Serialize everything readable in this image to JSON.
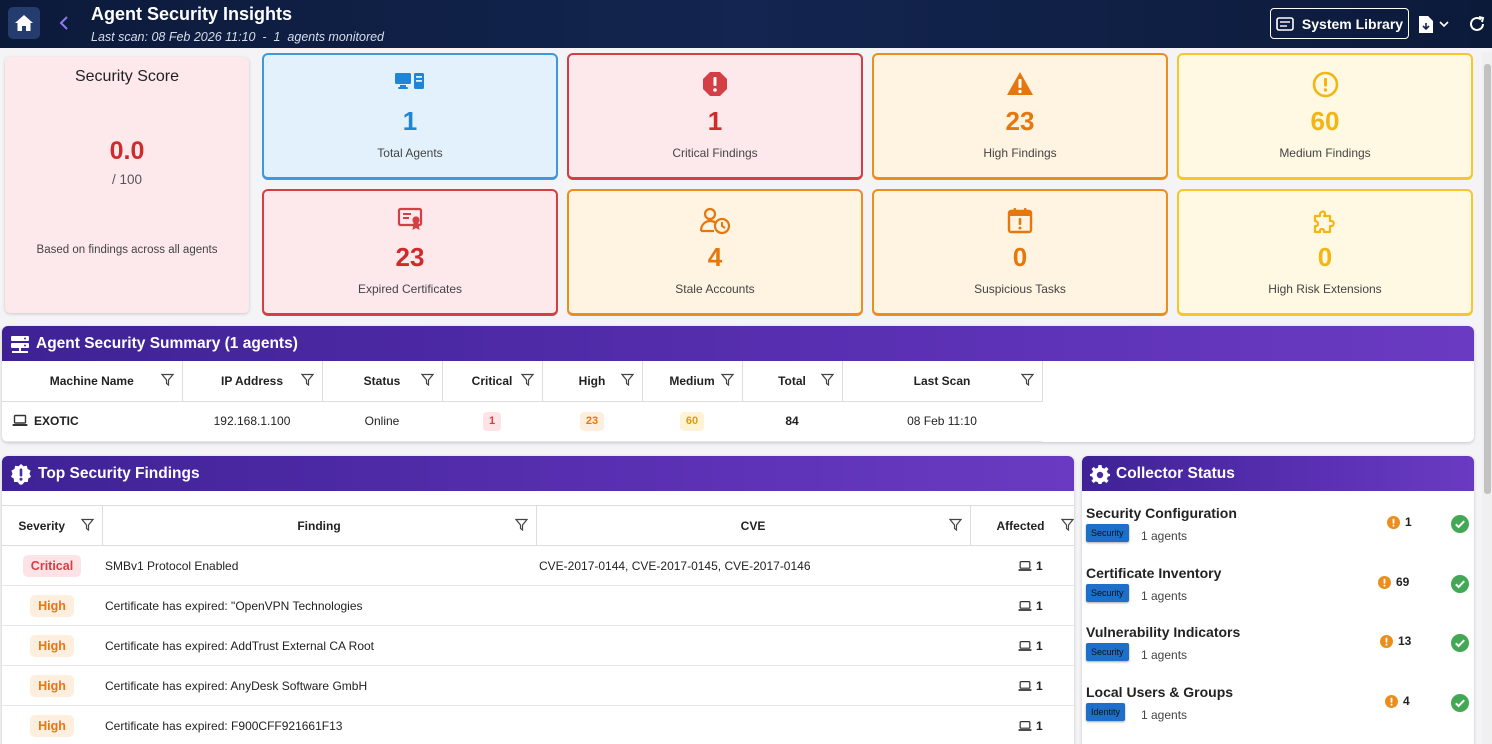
{
  "header": {
    "title": "Agent Security Insights",
    "subtitle": "Last scan: 08 Feb 2026 11:10  -  1  agents monitored",
    "system_library_label": "System Library"
  },
  "score": {
    "title": "Security Score",
    "value": "0.0",
    "max": "/ 100",
    "note": "Based on findings across all agents"
  },
  "stats": [
    {
      "value": "1",
      "label": "Total Agents",
      "icon": "monitor-server-icon",
      "color": "#1e86d6"
    },
    {
      "value": "1",
      "label": "Critical Findings",
      "icon": "alert-octagon-icon",
      "color": "#cf2b2b"
    },
    {
      "value": "23",
      "label": "High Findings",
      "icon": "warning-triangle-icon",
      "color": "#e5770c"
    },
    {
      "value": "60",
      "label": "Medium Findings",
      "icon": "alert-circle-icon",
      "color": "#f2b511"
    },
    {
      "value": "23",
      "label": "Expired Certificates",
      "icon": "certificate-icon",
      "color": "#cf2b2b"
    },
    {
      "value": "4",
      "label": "Stale Accounts",
      "icon": "user-clock-icon",
      "color": "#e5770c"
    },
    {
      "value": "0",
      "label": "Suspicious Tasks",
      "icon": "calendar-alert-icon",
      "color": "#e5770c"
    },
    {
      "value": "0",
      "label": "High Risk Extensions",
      "icon": "puzzle-icon",
      "color": "#f2b511"
    }
  ],
  "summary": {
    "title": "Agent Security Summary (1 agents)",
    "columns": [
      "Machine Name",
      "IP Address",
      "Status",
      "Critical",
      "High",
      "Medium",
      "Total",
      "Last Scan"
    ],
    "rows": [
      {
        "machine": "EXOTIC",
        "ip": "192.168.1.100",
        "status": "Online",
        "critical": "1",
        "high": "23",
        "medium": "60",
        "total": "84",
        "last_scan": "08 Feb 11:10"
      }
    ]
  },
  "findings": {
    "title": "Top Security Findings",
    "columns": [
      "Severity",
      "Finding",
      "CVE",
      "Affected"
    ],
    "rows": [
      {
        "severity": "Critical",
        "finding": "SMBv1 Protocol Enabled",
        "cve": "CVE-2017-0144, CVE-2017-0145, CVE-2017-0146",
        "affected": "1"
      },
      {
        "severity": "High",
        "finding": "Certificate has expired: \"OpenVPN Technologies",
        "cve": "",
        "affected": "1"
      },
      {
        "severity": "High",
        "finding": "Certificate has expired: AddTrust External CA Root",
        "cve": "",
        "affected": "1"
      },
      {
        "severity": "High",
        "finding": "Certificate has expired: AnyDesk Software GmbH",
        "cve": "",
        "affected": "1"
      },
      {
        "severity": "High",
        "finding": "Certificate has expired: F900CFF921661F13",
        "cve": "",
        "affected": "1"
      }
    ]
  },
  "collector": {
    "title": "Collector Status",
    "items": [
      {
        "name": "Security Configuration",
        "category": "Security",
        "agents": "1 agents",
        "count": "1"
      },
      {
        "name": "Certificate Inventory",
        "category": "Security",
        "agents": "1 agents",
        "count": "69"
      },
      {
        "name": "Vulnerability Indicators",
        "category": "Security",
        "agents": "1 agents",
        "count": "13"
      },
      {
        "name": "Local Users & Groups",
        "category": "Identity",
        "agents": "1 agents",
        "count": "4"
      }
    ]
  }
}
